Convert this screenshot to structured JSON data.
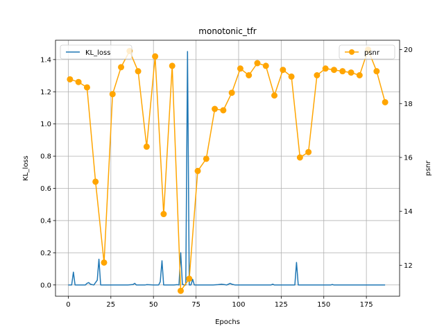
{
  "chart_data": {
    "type": "line",
    "title": "monotonic_tfr",
    "xlabel": "Epochs",
    "ylabel_left": "KL_loss",
    "ylabel_right": "psnr",
    "xlim": [
      -7.5,
      194.5
    ],
    "ylim_left": [
      -0.07,
      1.52
    ],
    "ylim_right": [
      10.85,
      20.35
    ],
    "x_ticks": [
      0,
      25,
      50,
      75,
      100,
      125,
      150,
      175
    ],
    "y_ticks_left": [
      0.0,
      0.2,
      0.4,
      0.6,
      0.8,
      1.0,
      1.2,
      1.4
    ],
    "y_ticks_right": [
      12,
      14,
      16,
      18,
      20
    ],
    "grid": true,
    "colors": {
      "kl": "#1f77b4",
      "psnr": "#ffa500"
    },
    "legend": [
      {
        "label": "KL_loss",
        "placement": "upper-left"
      },
      {
        "label": "psnr",
        "placement": "upper-right"
      }
    ],
    "series": [
      {
        "name": "KL_loss",
        "axis": "left",
        "x": [
          0,
          2,
          3,
          4,
          6,
          8,
          10,
          11,
          12,
          13,
          15,
          17,
          18,
          19,
          21,
          25,
          30,
          35,
          38,
          39,
          40,
          45,
          46,
          50,
          53,
          54,
          55,
          56,
          58,
          62,
          64,
          65,
          66,
          67,
          68,
          69,
          70,
          71,
          72,
          73,
          74,
          76,
          80,
          85,
          88,
          90,
          93,
          95,
          96,
          98,
          100,
          110,
          119,
          120,
          121,
          130,
          133,
          134,
          135,
          137,
          140,
          150,
          154,
          155,
          156,
          160,
          170,
          180,
          186
        ],
        "y": [
          0.0,
          0.0,
          0.08,
          0.0,
          0.0,
          0.0,
          0.0,
          0.01,
          0.015,
          0.005,
          0.0,
          0.03,
          0.16,
          0.0,
          0.0,
          0.0,
          0.0,
          0.0,
          0.003,
          0.01,
          0.0,
          0.0,
          0.002,
          0.0,
          0.0,
          0.02,
          0.15,
          0.0,
          0.0,
          0.0,
          0.002,
          0.0,
          0.2,
          0.005,
          0.0,
          0.0,
          1.45,
          0.0,
          0.0,
          0.035,
          0.0,
          0.0,
          0.0,
          0.0,
          0.002,
          0.005,
          0.0,
          0.01,
          0.005,
          0.0,
          0.0,
          0.0,
          0.0,
          0.005,
          0.0,
          0.0,
          0.0,
          0.14,
          0.0,
          0.0,
          0.0,
          0.0,
          0.0,
          0.003,
          0.0,
          0.0,
          0.0,
          0.0,
          0.0
        ]
      },
      {
        "name": "psnr",
        "axis": "right",
        "x": [
          1,
          6,
          11,
          16,
          21,
          26,
          31,
          36,
          41,
          46,
          51,
          56,
          61,
          66,
          71,
          76,
          81,
          86,
          91,
          96,
          101,
          106,
          111,
          116,
          121,
          126,
          131,
          136,
          141,
          146,
          151,
          156,
          161,
          166,
          171,
          176,
          181,
          186
        ],
        "y": [
          18.9,
          18.8,
          18.6,
          15.1,
          12.1,
          18.35,
          19.35,
          19.95,
          19.2,
          16.4,
          19.75,
          13.9,
          19.4,
          11.05,
          11.5,
          15.5,
          15.95,
          17.8,
          17.75,
          18.4,
          19.3,
          19.05,
          19.5,
          19.4,
          18.3,
          19.25,
          19.0,
          16.0,
          16.2,
          19.05,
          19.3,
          19.25,
          19.2,
          19.15,
          19.05,
          20.0,
          19.2,
          18.05
        ]
      }
    ]
  }
}
